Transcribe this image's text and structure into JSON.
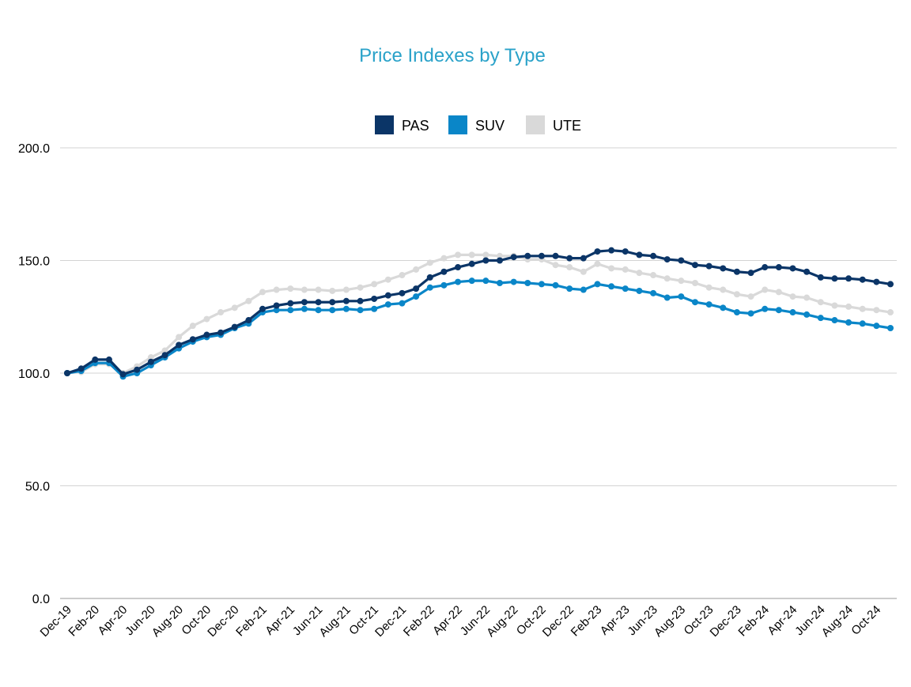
{
  "chart_data": {
    "type": "line",
    "title": "Price Indexes by Type",
    "xlabel": "",
    "ylabel": "",
    "ylim": [
      0,
      200
    ],
    "yticks": [
      "0.0",
      "50.0",
      "100.0",
      "150.0",
      "200.0"
    ],
    "ytick_values": [
      0,
      50,
      100,
      150,
      200
    ],
    "grid": true,
    "legend_position": "top",
    "x": [
      "Dec-19",
      "Jan-20",
      "Feb-20",
      "Mar-20",
      "Apr-20",
      "May-20",
      "Jun-20",
      "Jul-20",
      "Aug-20",
      "Sep-20",
      "Oct-20",
      "Nov-20",
      "Dec-20",
      "Jan-21",
      "Feb-21",
      "Mar-21",
      "Apr-21",
      "May-21",
      "Jun-21",
      "Jul-21",
      "Aug-21",
      "Sep-21",
      "Oct-21",
      "Nov-21",
      "Dec-21",
      "Jan-22",
      "Feb-22",
      "Mar-22",
      "Apr-22",
      "May-22",
      "Jun-22",
      "Jul-22",
      "Aug-22",
      "Sep-22",
      "Oct-22",
      "Nov-22",
      "Dec-22",
      "Jan-23",
      "Feb-23",
      "Mar-23",
      "Apr-23",
      "May-23",
      "Jun-23",
      "Jul-23",
      "Aug-23",
      "Sep-23",
      "Oct-23",
      "Nov-23",
      "Dec-23",
      "Jan-24",
      "Feb-24",
      "Mar-24",
      "Apr-24",
      "May-24",
      "Jun-24",
      "Jul-24",
      "Aug-24",
      "Sep-24",
      "Oct-24",
      "Nov-24"
    ],
    "xtick_labels": [
      "Dec-19",
      "Feb-20",
      "Apr-20",
      "Jun-20",
      "Aug-20",
      "Oct-20",
      "Dec-20",
      "Feb-21",
      "Apr-21",
      "Jun-21",
      "Aug-21",
      "Oct-21",
      "Dec-21",
      "Feb-22",
      "Apr-22",
      "Jun-22",
      "Aug-22",
      "Oct-22",
      "Dec-22",
      "Feb-23",
      "Apr-23",
      "Jun-23",
      "Aug-23",
      "Oct-23",
      "Dec-23",
      "Feb-24",
      "Apr-24",
      "Jun-24",
      "Aug-24",
      "Oct-24"
    ],
    "series": [
      {
        "name": "UTE",
        "color": "#d9d9d9",
        "values": [
          100,
          100.5,
          104,
          104,
          100,
          103,
          107,
          110,
          116,
          121,
          124,
          127,
          129,
          132,
          136,
          137,
          137.5,
          137,
          137,
          136.5,
          137,
          138,
          139.5,
          141.5,
          143.5,
          146,
          149,
          151,
          152.5,
          152.5,
          152.5,
          152,
          152,
          150.5,
          150.5,
          148,
          147,
          145,
          148.5,
          146.5,
          146,
          144.5,
          143.5,
          142,
          141,
          140,
          138,
          137,
          135,
          134,
          137,
          136,
          134,
          133.5,
          131.5,
          130,
          129.5,
          128.5,
          128,
          127
        ]
      },
      {
        "name": "SUV",
        "color": "#0a86c8",
        "values": [
          100,
          101,
          104.5,
          104.5,
          98.5,
          100,
          103.5,
          107,
          111,
          114,
          116,
          117,
          120,
          122,
          127,
          128,
          128,
          128.5,
          128,
          128,
          128.5,
          128,
          128.5,
          130.5,
          131,
          134,
          138,
          139,
          140.5,
          141,
          141,
          140,
          140.5,
          140,
          139.5,
          139,
          137.5,
          137,
          139.5,
          138.5,
          137.5,
          136.5,
          135.5,
          133.5,
          134,
          131.5,
          130.5,
          129,
          127,
          126.5,
          128.5,
          128,
          127,
          126,
          124.5,
          123.5,
          122.5,
          122,
          121,
          120
        ]
      },
      {
        "name": "PAS",
        "color": "#0b3567",
        "values": [
          100,
          102,
          106,
          106,
          99.5,
          101.5,
          105,
          108,
          112.5,
          115,
          117,
          118,
          120.5,
          123.5,
          128.5,
          130,
          131,
          131.5,
          131.5,
          131.5,
          132,
          132,
          133,
          134.5,
          135.5,
          137.5,
          142.5,
          145,
          147,
          148.5,
          150,
          150,
          151.5,
          152,
          152,
          152,
          151,
          151,
          154,
          154.5,
          154,
          152.5,
          152,
          150.5,
          150,
          148,
          147.5,
          146.5,
          145,
          144.5,
          147,
          147,
          146.5,
          145,
          142.5,
          142,
          142,
          141.5,
          140.5,
          139.5
        ]
      }
    ],
    "legend": [
      {
        "label": "PAS",
        "color": "#0b3567"
      },
      {
        "label": "SUV",
        "color": "#0a86c8"
      },
      {
        "label": "UTE",
        "color": "#d9d9d9"
      }
    ]
  }
}
